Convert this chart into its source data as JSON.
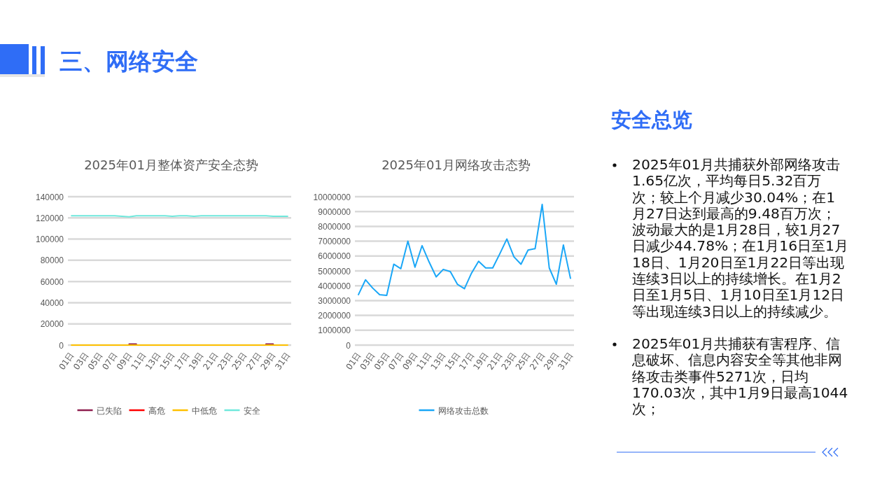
{
  "chart_data": [
    {
      "type": "line",
      "title": "2025年01月整体资产安全态势",
      "categories": [
        "01日",
        null,
        "03日",
        null,
        "05日",
        null,
        "07日",
        null,
        "09日",
        null,
        "11日",
        null,
        "13日",
        null,
        "15日",
        null,
        "17日",
        null,
        "19日",
        null,
        "21日",
        null,
        "23日",
        null,
        "25日",
        null,
        "27日",
        null,
        "29日",
        null,
        "31日"
      ],
      "series": [
        {
          "name": "已失陷",
          "color": "#8e1f4f",
          "values": [
            null,
            null,
            null,
            null,
            null,
            null,
            null,
            null,
            1000,
            1000,
            null,
            null,
            null,
            null,
            null,
            null,
            null,
            null,
            null,
            null,
            null,
            null,
            null,
            null,
            null,
            null,
            null,
            1000,
            1000,
            null,
            null
          ]
        },
        {
          "name": "高危",
          "color": "#ff0000",
          "values": [
            null,
            null,
            null,
            null,
            null,
            null,
            null,
            null,
            null,
            null,
            null,
            null,
            null,
            null,
            null,
            null,
            null,
            null,
            null,
            null,
            null,
            null,
            null,
            null,
            null,
            null,
            null,
            null,
            null,
            null,
            null
          ]
        },
        {
          "name": "中低危",
          "color": "#ffc000",
          "values": [
            0,
            0,
            0,
            0,
            0,
            0,
            0,
            0,
            0,
            0,
            0,
            0,
            0,
            0,
            0,
            0,
            0,
            0,
            0,
            0,
            0,
            0,
            0,
            0,
            0,
            0,
            0,
            0,
            0,
            0,
            0
          ]
        },
        {
          "name": "安全",
          "color": "#6fe8dc",
          "values": [
            122000,
            122000,
            122000,
            122000,
            122000,
            122000,
            122000,
            121500,
            121000,
            122000,
            122000,
            122000,
            122000,
            122000,
            121500,
            122000,
            122000,
            121500,
            122000,
            122000,
            122000,
            122000,
            122000,
            122000,
            122000,
            122000,
            122000,
            122000,
            121500,
            121500,
            121500
          ]
        }
      ],
      "ylim": [
        0,
        140000
      ],
      "yticks": [
        0,
        20000,
        40000,
        60000,
        80000,
        100000,
        120000,
        140000
      ],
      "grid": "y",
      "legend": "bottom"
    },
    {
      "type": "line",
      "title": "2025年01月网络攻击态势",
      "categories": [
        "01日",
        null,
        "03日",
        null,
        "05日",
        null,
        "07日",
        null,
        "09日",
        null,
        "11日",
        null,
        "13日",
        null,
        "15日",
        null,
        "17日",
        null,
        "19日",
        null,
        "21日",
        null,
        "23日",
        null,
        "25日",
        null,
        "27日",
        null,
        "29日",
        null,
        "31日"
      ],
      "series": [
        {
          "name": "网络攻击总数",
          "color": "#1aa7f7",
          "values": [
            3400000,
            4400000,
            3850000,
            3400000,
            3350000,
            5450000,
            5150000,
            7000000,
            5250000,
            6700000,
            5600000,
            4600000,
            5100000,
            4950000,
            4100000,
            3800000,
            4850000,
            5650000,
            5200000,
            5200000,
            6150000,
            7150000,
            5950000,
            5450000,
            6400000,
            6500000,
            9480000,
            5200000,
            4100000,
            6750000,
            4500000
          ]
        }
      ],
      "ylim": [
        0,
        10000000
      ],
      "yticks": [
        0,
        1000000,
        2000000,
        3000000,
        4000000,
        5000000,
        6000000,
        7000000,
        8000000,
        9000000,
        10000000
      ],
      "grid": "y",
      "legend": "bottom"
    },
    {
      "type": "other",
      "title": "三、网络安全",
      "subtitle": "安全总览",
      "annotations": [
        "2025年01月共捕获外部网络攻击1.65亿次，平均每日5.32百万次；较上个月减少30.04%；在1月27日达到最高的9.48百万次；波动最大的是1月28日，较1月27日减少44.78%；在1月16日至1月18日、1月20日至1月22日等出现连续3日以上的持续增长。在1月2日至1月5日、1月10日至1月12日等出现连续3日以上的持续减少。",
        "2025年01月共捕获有害程序、信息破坏、信息内容安全等其他非网络攻击类事件5271次，日均170.03次，其中1月9日最高1044次；"
      ]
    }
  ]
}
